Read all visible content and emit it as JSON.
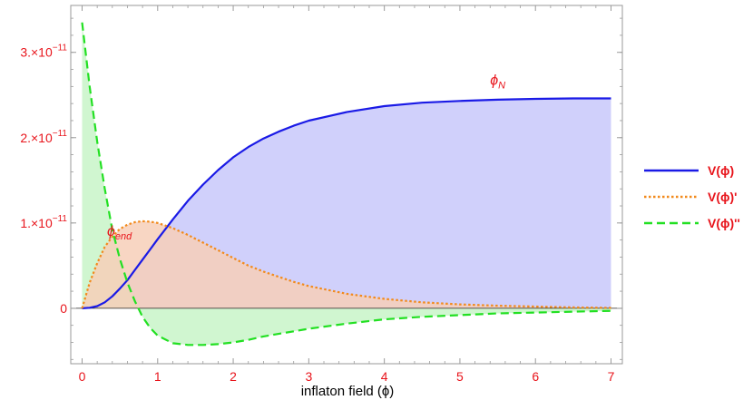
{
  "chart_data": {
    "type": "area",
    "xlabel": "inflaton field (ϕ)",
    "xlim": [
      -0.15,
      7.15
    ],
    "ylim": [
      -6.5e-12,
      3.55e-11
    ],
    "x_ticks": [
      {
        "value": 0,
        "label": "0"
      },
      {
        "value": 1,
        "label": "1"
      },
      {
        "value": 2,
        "label": "2"
      },
      {
        "value": 3,
        "label": "3"
      },
      {
        "value": 4,
        "label": "4"
      },
      {
        "value": 5,
        "label": "5"
      },
      {
        "value": 6,
        "label": "6"
      },
      {
        "value": 7,
        "label": "7"
      }
    ],
    "y_ticks": [
      {
        "value": 0,
        "label": "0"
      },
      {
        "value": 1e-11,
        "mantissa": "1.×10",
        "exp": "−11"
      },
      {
        "value": 2e-11,
        "mantissa": "2.×10",
        "exp": "−11"
      },
      {
        "value": 3e-11,
        "mantissa": "3.×10",
        "exp": "−11"
      }
    ],
    "series": [
      {
        "name": "V(ϕ)",
        "color": "#1a1ae6",
        "fill": "#c8c8fa",
        "dash": "solid",
        "x": [
          0,
          0.1,
          0.2,
          0.3,
          0.4,
          0.5,
          0.6,
          0.7,
          0.8,
          0.9,
          1.0,
          1.2,
          1.4,
          1.6,
          1.8,
          2.0,
          2.2,
          2.4,
          2.6,
          2.8,
          3.0,
          3.5,
          4.0,
          4.5,
          5.0,
          5.5,
          6.0,
          6.5,
          7.0
        ],
        "y": [
          0,
          6e-14,
          2.5e-13,
          7e-13,
          1.4e-12,
          2.3e-12,
          3.3e-12,
          4.5e-12,
          5.7e-12,
          6.9e-12,
          8.1e-12,
          1.04e-11,
          1.26e-11,
          1.45e-11,
          1.62e-11,
          1.77e-11,
          1.89e-11,
          1.99e-11,
          2.07e-11,
          2.14e-11,
          2.2e-11,
          2.3e-11,
          2.37e-11,
          2.41e-11,
          2.43e-11,
          2.445e-11,
          2.455e-11,
          2.46e-11,
          2.46e-11
        ]
      },
      {
        "name": "V(ϕ)'",
        "color": "#f28a1c",
        "fill": "#f7cfb8",
        "dash": "dotted",
        "x": [
          0,
          0.1,
          0.2,
          0.3,
          0.4,
          0.5,
          0.6,
          0.7,
          0.8,
          0.9,
          1.0,
          1.2,
          1.4,
          1.6,
          1.8,
          2.0,
          2.2,
          2.4,
          2.6,
          2.8,
          3.0,
          3.5,
          4.0,
          4.5,
          5.0,
          5.5,
          6.0,
          6.5,
          7.0
        ],
        "y": [
          0,
          3e-12,
          5.3e-12,
          7.2e-12,
          8.4e-12,
          9.3e-12,
          9.8e-12,
          1.01e-11,
          1.02e-11,
          1.015e-11,
          1e-11,
          9.4e-12,
          8.6e-12,
          7.7e-12,
          6.8e-12,
          5.9e-12,
          5e-12,
          4.3e-12,
          3.7e-12,
          3.1e-12,
          2.6e-12,
          1.7e-12,
          1.1e-12,
          7e-13,
          4.5e-13,
          3e-13,
          2e-13,
          1e-13,
          5e-14
        ]
      },
      {
        "name": "V(ϕ)''",
        "color": "#22e022",
        "fill": "#c8f5c8",
        "dash": "dashed",
        "x": [
          0,
          0.1,
          0.2,
          0.3,
          0.4,
          0.5,
          0.6,
          0.7,
          0.8,
          0.9,
          1.0,
          1.2,
          1.4,
          1.6,
          1.8,
          2.0,
          2.2,
          2.4,
          2.6,
          2.8,
          3.0,
          3.5,
          4.0,
          4.5,
          5.0,
          5.5,
          6.0,
          6.5,
          7.0
        ],
        "y": [
          3.35e-11,
          2.6e-11,
          1.95e-11,
          1.4e-11,
          9.2e-12,
          5.8e-12,
          3e-12,
          8e-13,
          -1e-12,
          -2.3e-12,
          -3.2e-12,
          -4.1e-12,
          -4.3e-12,
          -4.3e-12,
          -4.2e-12,
          -4e-12,
          -3.7e-12,
          -3.3e-12,
          -3e-12,
          -2.7e-12,
          -2.4e-12,
          -1.8e-12,
          -1.3e-12,
          -1e-12,
          -8e-13,
          -6e-13,
          -5e-13,
          -4e-13,
          -3e-13
        ]
      }
    ],
    "annotations": [
      {
        "text": "ϕ",
        "sub": "end",
        "x": 0.33,
        "y": 8.5e-12
      },
      {
        "text": "ϕ",
        "sub": "N",
        "x": 5.4,
        "y": 2.62e-11
      }
    ],
    "legend_position": "right",
    "grid": false
  }
}
